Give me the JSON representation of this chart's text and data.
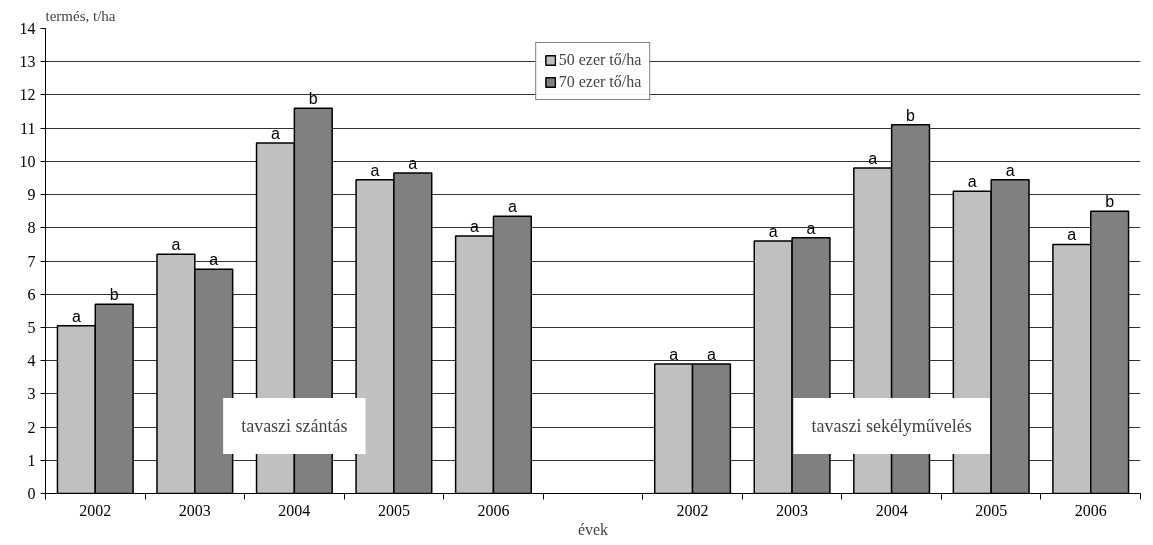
{
  "chart_data": {
    "type": "bar",
    "xlabel": "évek",
    "ylabel": "termés, t/ha",
    "categories": [
      "2002",
      "2003",
      "2004",
      "2005",
      "2006",
      null,
      "2002",
      "2003",
      "2004",
      "2005",
      "2006"
    ],
    "series": [
      {
        "name": "50 ezer tő/ha",
        "color": "#c0c0c0",
        "values": [
          5.05,
          7.2,
          10.55,
          9.45,
          7.75,
          null,
          3.9,
          7.6,
          9.8,
          9.1,
          7.5
        ],
        "value_labels": [
          "a",
          "a",
          "a",
          "a",
          "a",
          null,
          "a",
          "a",
          "a",
          "a",
          "a"
        ]
      },
      {
        "name": "70 ezer tő/ha",
        "color": "#808080",
        "values": [
          5.7,
          6.75,
          11.6,
          9.65,
          8.35,
          null,
          3.9,
          7.7,
          11.1,
          9.45,
          8.5
        ],
        "value_labels": [
          "b",
          "a",
          "b",
          "a",
          "a",
          null,
          "a",
          "a",
          "b",
          "a",
          "b"
        ]
      }
    ],
    "ylim": [
      0,
      14
    ],
    "yticks": [
      0,
      1,
      2,
      3,
      4,
      5,
      6,
      7,
      8,
      9,
      10,
      11,
      12,
      13,
      14
    ],
    "grid": "y",
    "legend": "top",
    "annotations": [
      "tavaszi szántás",
      "tavaszi sekélyművelés"
    ]
  }
}
